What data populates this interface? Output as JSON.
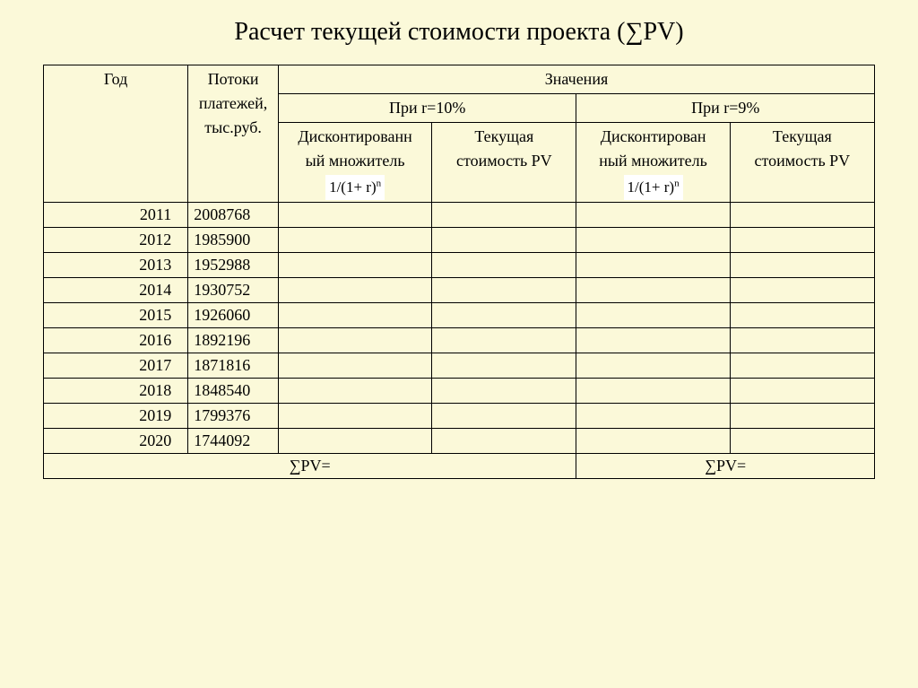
{
  "title": "Расчет текущей стоимости проекта (∑PV)",
  "header": {
    "year": "Год",
    "flows": "Потоки платежей, тыс.руб.",
    "values": "Значения",
    "r10": "При r=10%",
    "r9": "При r=9%",
    "discount_label": "Дисконтированный множитель",
    "discount_label_a": "Дисконтированн",
    "discount_label_b": "ый множитель",
    "discount_label2_a": "Дисконтирован",
    "discount_label2_b": "ный множитель",
    "pv_label": "Текущая стоимость PV",
    "pv_label_a": "Текущая",
    "pv_label_b": "стоимость PV",
    "formula": "1/(1+ r)",
    "formula_sup": "n"
  },
  "rows": [
    {
      "year": "2011",
      "flow": "2008768"
    },
    {
      "year": "2012",
      "flow": "1985900"
    },
    {
      "year": "2013",
      "flow": "1952988"
    },
    {
      "year": "2014",
      "flow": "1930752"
    },
    {
      "year": "2015",
      "flow": "1926060"
    },
    {
      "year": "2016",
      "flow": "1892196"
    },
    {
      "year": "2017",
      "flow": "1871816"
    },
    {
      "year": "2018",
      "flow": "1848540"
    },
    {
      "year": "2019",
      "flow": "1799376"
    },
    {
      "year": "2020",
      "flow": "1744092"
    }
  ],
  "footer": {
    "sum_pv": "∑PV="
  },
  "style": {
    "background_color": "#fbf9d9",
    "border_color": "#000000",
    "text_color": "#000000",
    "formula_bg": "#ffffff",
    "title_fontsize": 28,
    "body_fontsize": 18
  }
}
